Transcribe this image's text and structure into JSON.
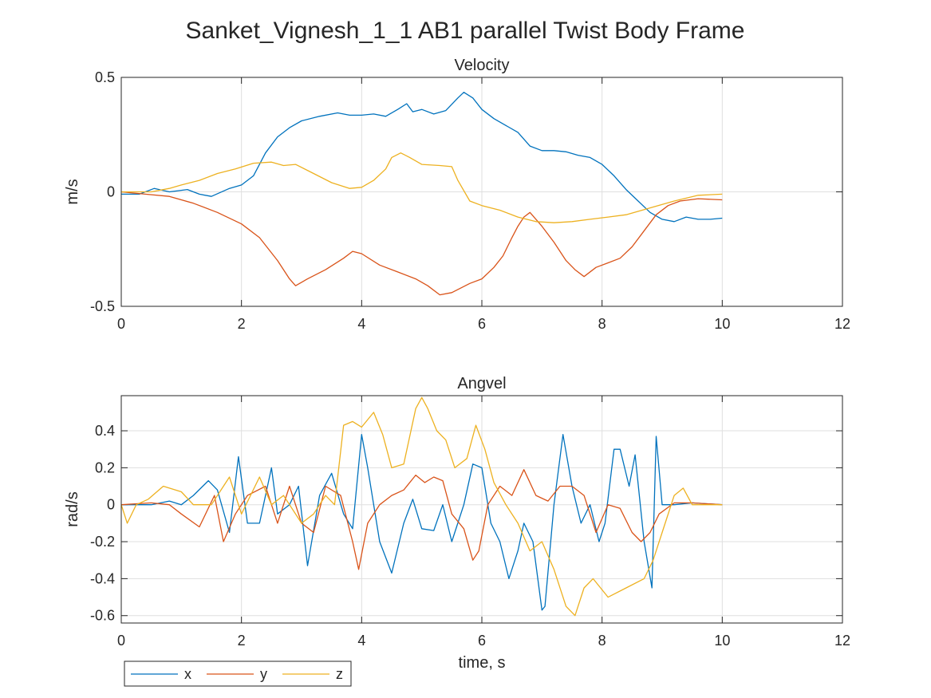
{
  "figure": {
    "title": "Sanket_Vignesh_1_1 AB1 parallel Twist Body Frame"
  },
  "legend": {
    "entries": [
      "x",
      "y",
      "z"
    ]
  },
  "colors": {
    "x": "#0072BD",
    "y": "#D95319",
    "z": "#EDB120"
  },
  "chart_data": [
    {
      "type": "line",
      "title": "Velocity",
      "xlabel": "",
      "ylabel": "m/s",
      "xlim": [
        0,
        12
      ],
      "ylim": [
        -0.5,
        0.5
      ],
      "xticks": [
        "0",
        "2",
        "4",
        "6",
        "8",
        "10",
        "12"
      ],
      "yticks": [
        "-0.5",
        "0",
        "0.5"
      ],
      "grid": true,
      "series": [
        {
          "name": "x",
          "color": "#0072BD",
          "x": [
            0,
            0.3,
            0.55,
            0.8,
            1.1,
            1.3,
            1.5,
            1.8,
            2.0,
            2.2,
            2.4,
            2.6,
            2.8,
            3.0,
            3.3,
            3.6,
            3.8,
            4.0,
            4.2,
            4.4,
            4.6,
            4.75,
            4.85,
            5.0,
            5.2,
            5.4,
            5.6,
            5.7,
            5.85,
            6.0,
            6.2,
            6.4,
            6.6,
            6.8,
            7.0,
            7.2,
            7.4,
            7.6,
            7.8,
            8.0,
            8.2,
            8.4,
            8.6,
            8.8,
            9.0,
            9.2,
            9.4,
            9.6,
            9.8,
            10.0
          ],
          "y": [
            -0.01,
            -0.01,
            0.015,
            0.0,
            0.01,
            -0.01,
            -0.02,
            0.015,
            0.03,
            0.07,
            0.17,
            0.24,
            0.28,
            0.31,
            0.33,
            0.345,
            0.335,
            0.335,
            0.34,
            0.33,
            0.36,
            0.385,
            0.35,
            0.36,
            0.34,
            0.355,
            0.41,
            0.435,
            0.41,
            0.36,
            0.32,
            0.29,
            0.26,
            0.2,
            0.18,
            0.18,
            0.175,
            0.16,
            0.15,
            0.12,
            0.07,
            0.01,
            -0.04,
            -0.09,
            -0.12,
            -0.13,
            -0.11,
            -0.12,
            -0.12,
            -0.115
          ]
        },
        {
          "name": "y",
          "color": "#D95319",
          "x": [
            0,
            0.4,
            0.8,
            1.2,
            1.6,
            2.0,
            2.3,
            2.6,
            2.8,
            2.9,
            3.1,
            3.4,
            3.7,
            3.85,
            4.0,
            4.3,
            4.6,
            4.9,
            5.1,
            5.3,
            5.5,
            5.8,
            6.0,
            6.2,
            6.35,
            6.5,
            6.6,
            6.7,
            6.8,
            7.0,
            7.2,
            7.4,
            7.55,
            7.7,
            7.9,
            8.1,
            8.3,
            8.5,
            8.7,
            8.9,
            9.1,
            9.3,
            9.6,
            10.0
          ],
          "y": [
            0.0,
            -0.01,
            -0.02,
            -0.05,
            -0.09,
            -0.14,
            -0.2,
            -0.3,
            -0.38,
            -0.41,
            -0.38,
            -0.34,
            -0.29,
            -0.26,
            -0.27,
            -0.32,
            -0.35,
            -0.38,
            -0.41,
            -0.45,
            -0.44,
            -0.4,
            -0.38,
            -0.33,
            -0.28,
            -0.2,
            -0.15,
            -0.11,
            -0.09,
            -0.15,
            -0.22,
            -0.3,
            -0.34,
            -0.37,
            -0.33,
            -0.31,
            -0.29,
            -0.24,
            -0.17,
            -0.1,
            -0.06,
            -0.04,
            -0.03,
            -0.035
          ]
        },
        {
          "name": "z",
          "color": "#EDB120",
          "x": [
            0,
            0.5,
            0.8,
            1.0,
            1.3,
            1.6,
            1.9,
            2.2,
            2.5,
            2.7,
            2.9,
            3.2,
            3.5,
            3.8,
            4.0,
            4.2,
            4.4,
            4.5,
            4.65,
            4.8,
            5.0,
            5.3,
            5.5,
            5.6,
            5.8,
            6.0,
            6.3,
            6.6,
            6.9,
            7.2,
            7.5,
            7.8,
            8.1,
            8.4,
            8.8,
            9.2,
            9.6,
            10.0
          ],
          "y": [
            0.0,
            0.0,
            0.015,
            0.03,
            0.05,
            0.08,
            0.1,
            0.125,
            0.13,
            0.115,
            0.12,
            0.08,
            0.04,
            0.015,
            0.02,
            0.05,
            0.1,
            0.15,
            0.17,
            0.15,
            0.12,
            0.115,
            0.11,
            0.05,
            -0.04,
            -0.06,
            -0.08,
            -0.11,
            -0.13,
            -0.135,
            -0.13,
            -0.12,
            -0.11,
            -0.1,
            -0.07,
            -0.04,
            -0.015,
            -0.01
          ]
        }
      ]
    },
    {
      "type": "line",
      "title": "Angvel",
      "xlabel": "time, s",
      "ylabel": "rad/s",
      "xlim": [
        0,
        12
      ],
      "ylim": [
        -0.64,
        0.59
      ],
      "xticks": [
        "0",
        "2",
        "4",
        "6",
        "8",
        "10",
        "12"
      ],
      "yticks": [
        "-0.6",
        "-0.4",
        "-0.2",
        "0",
        "0.2",
        "0.4"
      ],
      "grid": true,
      "series": [
        {
          "name": "x",
          "color": "#0072BD",
          "x": [
            0,
            0.5,
            0.8,
            1.0,
            1.2,
            1.45,
            1.6,
            1.8,
            1.95,
            2.1,
            2.3,
            2.5,
            2.6,
            2.8,
            2.95,
            3.1,
            3.3,
            3.5,
            3.7,
            3.85,
            4.0,
            4.1,
            4.3,
            4.5,
            4.7,
            4.85,
            5.0,
            5.2,
            5.35,
            5.5,
            5.7,
            5.85,
            6.0,
            6.15,
            6.3,
            6.45,
            6.6,
            6.7,
            6.85,
            7.0,
            7.05,
            7.2,
            7.35,
            7.5,
            7.65,
            7.8,
            7.95,
            8.05,
            8.2,
            8.3,
            8.45,
            8.55,
            8.7,
            8.83,
            8.9,
            9.0,
            9.2,
            9.5,
            10.0
          ],
          "y": [
            0.0,
            0.0,
            0.02,
            0.0,
            0.05,
            0.13,
            0.08,
            -0.15,
            0.26,
            -0.1,
            -0.1,
            0.2,
            -0.05,
            0.0,
            0.1,
            -0.33,
            0.05,
            0.17,
            -0.05,
            -0.13,
            0.38,
            0.2,
            -0.2,
            -0.37,
            -0.1,
            0.03,
            -0.13,
            -0.14,
            0.0,
            -0.2,
            0.0,
            0.22,
            0.2,
            -0.1,
            -0.2,
            -0.4,
            -0.25,
            -0.1,
            -0.2,
            -0.57,
            -0.55,
            0.0,
            0.38,
            0.1,
            -0.1,
            0.0,
            -0.2,
            -0.1,
            0.3,
            0.3,
            0.1,
            0.27,
            -0.2,
            -0.45,
            0.37,
            0.0,
            0.0,
            0.01,
            0.0
          ]
        },
        {
          "name": "y",
          "color": "#D95319",
          "x": [
            0,
            0.5,
            0.8,
            1.0,
            1.3,
            1.55,
            1.7,
            1.9,
            2.1,
            2.4,
            2.6,
            2.8,
            3.0,
            3.2,
            3.4,
            3.65,
            3.85,
            3.95,
            4.1,
            4.3,
            4.5,
            4.7,
            4.9,
            5.05,
            5.2,
            5.35,
            5.5,
            5.7,
            5.85,
            5.95,
            6.1,
            6.3,
            6.5,
            6.7,
            6.9,
            7.1,
            7.3,
            7.5,
            7.7,
            7.9,
            8.1,
            8.3,
            8.5,
            8.65,
            8.8,
            8.95,
            9.2,
            9.5,
            10.0
          ],
          "y": [
            0.0,
            0.01,
            0.0,
            -0.05,
            -0.12,
            0.05,
            -0.2,
            -0.05,
            0.05,
            0.1,
            -0.1,
            0.1,
            -0.1,
            -0.15,
            0.1,
            0.05,
            -0.2,
            -0.35,
            -0.1,
            0.0,
            0.05,
            0.08,
            0.16,
            0.12,
            0.15,
            0.13,
            -0.05,
            -0.13,
            -0.3,
            -0.25,
            0.0,
            0.1,
            0.05,
            0.19,
            0.05,
            0.02,
            0.1,
            0.1,
            0.05,
            -0.15,
            0.0,
            -0.02,
            -0.15,
            -0.2,
            -0.15,
            -0.05,
            0.01,
            0.01,
            0.0
          ]
        },
        {
          "name": "z",
          "color": "#EDB120",
          "x": [
            0,
            0.1,
            0.25,
            0.45,
            0.7,
            1.0,
            1.2,
            1.5,
            1.8,
            2.0,
            2.3,
            2.5,
            2.7,
            3.0,
            3.2,
            3.4,
            3.55,
            3.7,
            3.85,
            4.0,
            4.2,
            4.35,
            4.5,
            4.7,
            4.9,
            5.0,
            5.1,
            5.25,
            5.4,
            5.55,
            5.75,
            5.9,
            6.05,
            6.2,
            6.4,
            6.6,
            6.8,
            7.0,
            7.2,
            7.4,
            7.55,
            7.7,
            7.85,
            8.1,
            8.4,
            8.7,
            8.85,
            9.0,
            9.2,
            9.35,
            9.5,
            10.0
          ],
          "y": [
            0.0,
            -0.1,
            0.0,
            0.03,
            0.1,
            0.07,
            0.0,
            0.0,
            0.15,
            -0.05,
            0.15,
            0.0,
            0.05,
            -0.1,
            -0.05,
            0.05,
            0.0,
            0.43,
            0.45,
            0.42,
            0.5,
            0.38,
            0.2,
            0.22,
            0.52,
            0.58,
            0.52,
            0.4,
            0.35,
            0.2,
            0.25,
            0.43,
            0.3,
            0.12,
            0.0,
            -0.1,
            -0.25,
            -0.2,
            -0.35,
            -0.55,
            -0.6,
            -0.45,
            -0.4,
            -0.5,
            -0.45,
            -0.4,
            -0.3,
            -0.15,
            0.05,
            0.09,
            0.0,
            0.0
          ]
        }
      ]
    }
  ]
}
